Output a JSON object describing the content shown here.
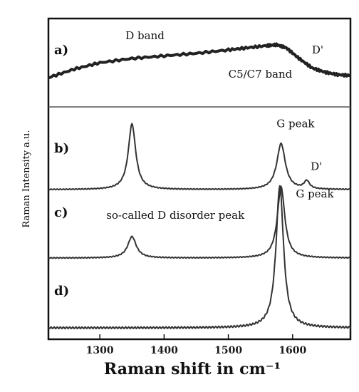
{
  "chart_data": {
    "type": "line",
    "title": "",
    "xlabel": "Raman shift in cm⁻¹",
    "ylabel": "Raman Intensity a.u.",
    "xlim": [
      1220,
      1690
    ],
    "x_ticks": [
      1300,
      1400,
      1500,
      1600
    ],
    "x_tick_labels": [
      "1300",
      "1400",
      "1500",
      "1600"
    ],
    "grid": false,
    "panels": [
      {
        "label": "a)",
        "series": {
          "x": [
            1220,
            1260,
            1300,
            1350,
            1400,
            1450,
            1500,
            1530,
            1560,
            1575,
            1590,
            1610,
            1630,
            1650,
            1670,
            1690
          ],
          "values": [
            0.15,
            0.35,
            0.5,
            0.6,
            0.66,
            0.72,
            0.8,
            0.85,
            0.9,
            0.92,
            0.85,
            0.6,
            0.38,
            0.28,
            0.22,
            0.2
          ]
        },
        "annotations": [
          {
            "text": "D band",
            "x": 1340,
            "y": 1.05
          },
          {
            "text": "C5/C7 band",
            "x": 1500,
            "y": 0.15
          },
          {
            "text": "D'",
            "x": 1630,
            "y": 0.72
          }
        ]
      },
      {
        "label": "b)",
        "peaks": [
          {
            "center": 1350,
            "height": 1.0,
            "width": 7
          },
          {
            "center": 1582,
            "height": 0.7,
            "width": 8
          },
          {
            "center": 1622,
            "height": 0.12,
            "width": 5
          }
        ],
        "annotations": [
          {
            "text": "G peak",
            "x": 1575,
            "y": 0.95
          },
          {
            "text": "D'",
            "x": 1628,
            "y": 0.3
          }
        ]
      },
      {
        "label": "c)",
        "peaks": [
          {
            "center": 1350,
            "height": 0.3,
            "width": 8
          },
          {
            "center": 1582,
            "height": 1.0,
            "width": 7
          }
        ],
        "annotations": [
          {
            "text": "so-called D disorder peak",
            "x": 1310,
            "y": 0.55
          },
          {
            "text": "G peak",
            "x": 1605,
            "y": 0.85
          }
        ]
      },
      {
        "label": "d)",
        "peaks": [
          {
            "center": 1580,
            "height": 1.0,
            "width": 7
          }
        ],
        "annotations": []
      }
    ]
  }
}
